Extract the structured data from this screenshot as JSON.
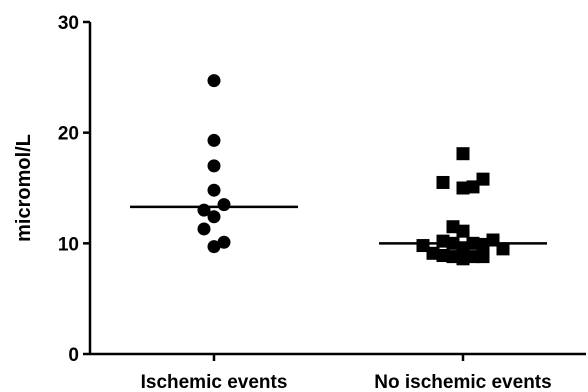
{
  "chart_data": {
    "type": "scatter",
    "title": "",
    "xlabel": "",
    "ylabel": "micromol/L",
    "ylim": [
      0,
      30
    ],
    "yticks": [
      0,
      10,
      20,
      30
    ],
    "grid": false,
    "categories": [
      "Ischemic events",
      "No ischemic events"
    ],
    "series": [
      {
        "category": "Ischemic events",
        "marker": "circle",
        "median": 13.3,
        "points": [
          {
            "offset": 0,
            "y": 24.7
          },
          {
            "offset": 0,
            "y": 19.3
          },
          {
            "offset": 0,
            "y": 17.0
          },
          {
            "offset": 0,
            "y": 14.8
          },
          {
            "offset": 1,
            "y": 13.5
          },
          {
            "offset": -1,
            "y": 13.0
          },
          {
            "offset": 0,
            "y": 12.4
          },
          {
            "offset": -1,
            "y": 11.3
          },
          {
            "offset": 1,
            "y": 10.1
          },
          {
            "offset": 0,
            "y": 9.7
          }
        ]
      },
      {
        "category": "No ischemic events",
        "marker": "square",
        "median": 10.0,
        "points": [
          {
            "offset": 0,
            "y": 18.1
          },
          {
            "offset": 2,
            "y": 15.8
          },
          {
            "offset": -2,
            "y": 15.5
          },
          {
            "offset": 1,
            "y": 15.1
          },
          {
            "offset": 0,
            "y": 15.0
          },
          {
            "offset": -1,
            "y": 11.5
          },
          {
            "offset": 0,
            "y": 11.1
          },
          {
            "offset": 3,
            "y": 10.3
          },
          {
            "offset": -2,
            "y": 10.2
          },
          {
            "offset": -1,
            "y": 10.0
          },
          {
            "offset": 1,
            "y": 10.0
          },
          {
            "offset": 2,
            "y": 9.9
          },
          {
            "offset": -4,
            "y": 9.8
          },
          {
            "offset": 0,
            "y": 9.6
          },
          {
            "offset": 4,
            "y": 9.5
          },
          {
            "offset": -3,
            "y": 9.1
          },
          {
            "offset": -2,
            "y": 8.9
          },
          {
            "offset": -1,
            "y": 8.8
          },
          {
            "offset": 0,
            "y": 8.6
          },
          {
            "offset": 1,
            "y": 8.8
          },
          {
            "offset": 2,
            "y": 8.8
          }
        ]
      }
    ]
  }
}
